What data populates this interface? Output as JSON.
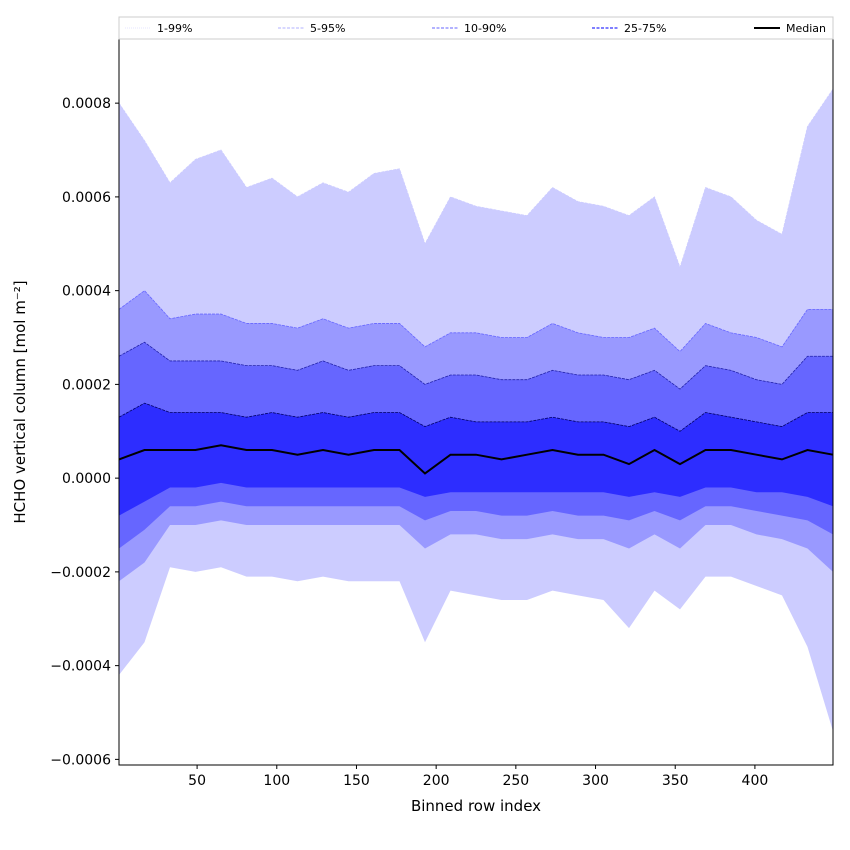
{
  "chart_data": {
    "type": "area",
    "xlabel": "Binned row index",
    "ylabel": "HCHO vertical column [mol m⁻²]",
    "xlim": [
      1,
      449
    ],
    "ylim": [
      -0.000612,
      0.000939
    ],
    "grid": false,
    "legend_placement": "top (above axes, full width)",
    "x_ticks": [
      50,
      100,
      150,
      200,
      250,
      300,
      350,
      400
    ],
    "y_ticks": [
      -0.0006,
      -0.0004,
      -0.0002,
      0.0,
      0.0002,
      0.0004,
      0.0006,
      0.0008
    ],
    "y_tick_labels": [
      "−0.0006",
      "−0.0004",
      "−0.0002",
      "0.0000",
      "0.0002",
      "0.0004",
      "0.0006",
      "0.0008"
    ],
    "value_multiplier": 0.0001,
    "x": [
      1,
      17,
      33,
      49,
      65,
      81,
      97,
      113,
      129,
      145,
      161,
      177,
      193,
      209,
      225,
      241,
      257,
      273,
      289,
      305,
      321,
      337,
      353,
      369,
      385,
      401,
      417,
      433,
      449
    ],
    "bands": [
      {
        "name": "1-99%",
        "color": "#ccccff",
        "low": [
          -4.2,
          -3.5,
          -1.9,
          -2.0,
          -1.9,
          -2.1,
          -2.1,
          -2.2,
          -2.1,
          -2.2,
          -2.2,
          -2.2,
          -3.5,
          -2.4,
          -2.5,
          -2.6,
          -2.6,
          -2.4,
          -2.5,
          -2.6,
          -3.2,
          -2.4,
          -2.8,
          -2.1,
          -2.1,
          -2.3,
          -2.5,
          -3.6,
          -5.4
        ],
        "high": [
          8.0,
          7.2,
          6.3,
          6.8,
          7.0,
          6.2,
          6.4,
          6.0,
          6.3,
          6.1,
          6.5,
          6.6,
          5.0,
          6.0,
          5.8,
          5.7,
          5.6,
          6.2,
          5.9,
          5.8,
          5.6,
          6.0,
          4.5,
          6.2,
          6.0,
          5.5,
          5.2,
          7.5,
          8.3
        ]
      },
      {
        "name": "5-95%",
        "color": "#9999ff",
        "low": [
          -2.2,
          -1.8,
          -1.0,
          -1.0,
          -0.9,
          -1.0,
          -1.0,
          -1.0,
          -1.0,
          -1.0,
          -1.0,
          -1.0,
          -1.5,
          -1.2,
          -1.2,
          -1.3,
          -1.3,
          -1.2,
          -1.3,
          -1.3,
          -1.5,
          -1.2,
          -1.5,
          -1.0,
          -1.0,
          -1.2,
          -1.3,
          -1.5,
          -2.0
        ],
        "high": [
          3.6,
          4.0,
          3.4,
          3.5,
          3.5,
          3.3,
          3.3,
          3.2,
          3.4,
          3.2,
          3.3,
          3.3,
          2.8,
          3.1,
          3.1,
          3.0,
          3.0,
          3.3,
          3.1,
          3.0,
          3.0,
          3.2,
          2.7,
          3.3,
          3.1,
          3.0,
          2.8,
          3.6,
          3.6
        ]
      },
      {
        "name": "10-90%",
        "color": "#6666ff",
        "low": [
          -1.5,
          -1.1,
          -0.6,
          -0.6,
          -0.5,
          -0.6,
          -0.6,
          -0.6,
          -0.6,
          -0.6,
          -0.6,
          -0.6,
          -0.9,
          -0.7,
          -0.7,
          -0.8,
          -0.8,
          -0.7,
          -0.8,
          -0.8,
          -0.9,
          -0.7,
          -0.9,
          -0.6,
          -0.6,
          -0.7,
          -0.8,
          -0.9,
          -1.2
        ],
        "high": [
          2.6,
          2.9,
          2.5,
          2.5,
          2.5,
          2.4,
          2.4,
          2.3,
          2.5,
          2.3,
          2.4,
          2.4,
          2.0,
          2.2,
          2.2,
          2.1,
          2.1,
          2.3,
          2.2,
          2.2,
          2.1,
          2.3,
          1.9,
          2.4,
          2.3,
          2.1,
          2.0,
          2.6,
          2.6
        ]
      },
      {
        "name": "25-75%",
        "color": "#2d2dff",
        "low": [
          -0.8,
          -0.5,
          -0.2,
          -0.2,
          -0.1,
          -0.2,
          -0.2,
          -0.2,
          -0.2,
          -0.2,
          -0.2,
          -0.2,
          -0.4,
          -0.3,
          -0.3,
          -0.3,
          -0.3,
          -0.3,
          -0.3,
          -0.3,
          -0.4,
          -0.3,
          -0.4,
          -0.2,
          -0.2,
          -0.3,
          -0.3,
          -0.4,
          -0.6
        ],
        "high": [
          1.3,
          1.6,
          1.4,
          1.4,
          1.4,
          1.3,
          1.4,
          1.3,
          1.4,
          1.3,
          1.4,
          1.4,
          1.1,
          1.3,
          1.2,
          1.2,
          1.2,
          1.3,
          1.2,
          1.2,
          1.1,
          1.3,
          1.0,
          1.4,
          1.3,
          1.2,
          1.1,
          1.4,
          1.4
        ]
      }
    ],
    "median": {
      "name": "Median",
      "color": "#000000",
      "values": [
        0.4,
        0.6,
        0.6,
        0.6,
        0.7,
        0.6,
        0.6,
        0.5,
        0.6,
        0.5,
        0.6,
        0.6,
        0.1,
        0.5,
        0.5,
        0.4,
        0.5,
        0.6,
        0.5,
        0.5,
        0.3,
        0.6,
        0.3,
        0.6,
        0.6,
        0.5,
        0.4,
        0.6,
        0.5
      ]
    },
    "legend": [
      {
        "label": "1-99%",
        "color": "#ccccff",
        "style": "dotted"
      },
      {
        "label": "5-95%",
        "color": "#9999ff",
        "style": "dashed"
      },
      {
        "label": "10-90%",
        "color": "#6666ff",
        "style": "dashed"
      },
      {
        "label": "25-75%",
        "color": "#3333ff",
        "style": "dashed"
      },
      {
        "label": "Median",
        "color": "#000000",
        "style": "solid"
      }
    ]
  }
}
